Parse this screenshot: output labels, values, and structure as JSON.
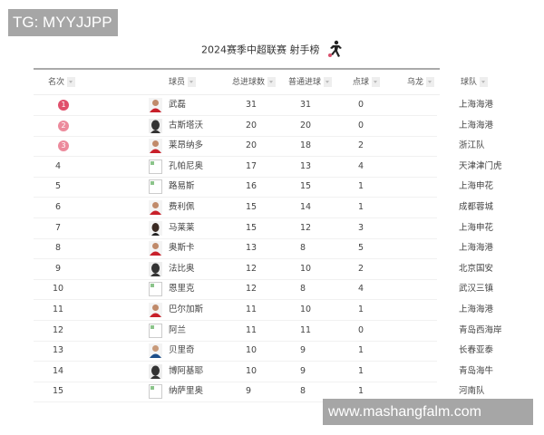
{
  "watermark_top": "TG: MYYJJPP",
  "watermark_bottom": "www.mashangfalm.com",
  "title": "2024赛季中超联赛 射手榜",
  "title_icon": "soccer-player-icon",
  "colors": {
    "rank1": "#e0506c",
    "rank2": "#ec8a9c",
    "rank3": "#ec8a9c",
    "rule": "#aaaaaa"
  },
  "headers": {
    "rank": "名次",
    "player": "球员",
    "total": "总进球数",
    "normal": "普通进球",
    "penalty": "点球",
    "own_goal": "乌龙",
    "team": "球队"
  },
  "rows": [
    {
      "rank": "1",
      "name": "武磊",
      "total": "31",
      "normal": "31",
      "penalty": "0",
      "team": "上海海港",
      "avatar": "photo-red"
    },
    {
      "rank": "2",
      "name": "古斯塔沃",
      "total": "20",
      "normal": "20",
      "penalty": "0",
      "team": "上海海港",
      "avatar": "silhouette"
    },
    {
      "rank": "3",
      "name": "莱昂纳多",
      "total": "20",
      "normal": "18",
      "penalty": "2",
      "team": "浙江队",
      "avatar": "photo-red"
    },
    {
      "rank": "4",
      "name": "孔帕尼奥",
      "total": "17",
      "normal": "13",
      "penalty": "4",
      "team": "天津津门虎",
      "avatar": "broken"
    },
    {
      "rank": "5",
      "name": "路易斯",
      "total": "16",
      "normal": "15",
      "penalty": "1",
      "team": "上海申花",
      "avatar": "broken"
    },
    {
      "rank": "6",
      "name": "费利佩",
      "total": "15",
      "normal": "14",
      "penalty": "1",
      "team": "成都蓉城",
      "avatar": "photo-red"
    },
    {
      "rank": "7",
      "name": "马莱莱",
      "total": "15",
      "normal": "12",
      "penalty": "3",
      "team": "上海申花",
      "avatar": "photo-dark"
    },
    {
      "rank": "8",
      "name": "奥斯卡",
      "total": "13",
      "normal": "8",
      "penalty": "5",
      "team": "上海海港",
      "avatar": "photo-red"
    },
    {
      "rank": "9",
      "name": "法比奥",
      "total": "12",
      "normal": "10",
      "penalty": "2",
      "team": "北京国安",
      "avatar": "silhouette"
    },
    {
      "rank": "10",
      "name": "恩里克",
      "total": "12",
      "normal": "8",
      "penalty": "4",
      "team": "武汉三镇",
      "avatar": "broken"
    },
    {
      "rank": "11",
      "name": "巴尔加斯",
      "total": "11",
      "normal": "10",
      "penalty": "1",
      "team": "上海海港",
      "avatar": "photo-red"
    },
    {
      "rank": "12",
      "name": "阿兰",
      "total": "11",
      "normal": "11",
      "penalty": "0",
      "team": "青岛西海岸",
      "avatar": "broken"
    },
    {
      "rank": "13",
      "name": "贝里奇",
      "total": "10",
      "normal": "9",
      "penalty": "1",
      "team": "长春亚泰",
      "avatar": "photo-blue"
    },
    {
      "rank": "14",
      "name": "博阿基耶",
      "total": "10",
      "normal": "9",
      "penalty": "1",
      "team": "青岛海牛",
      "avatar": "silhouette"
    },
    {
      "rank": "15",
      "name": "纳萨里奥",
      "total": "9",
      "normal": "8",
      "penalty": "1",
      "team": "河南队",
      "avatar": "broken"
    }
  ]
}
